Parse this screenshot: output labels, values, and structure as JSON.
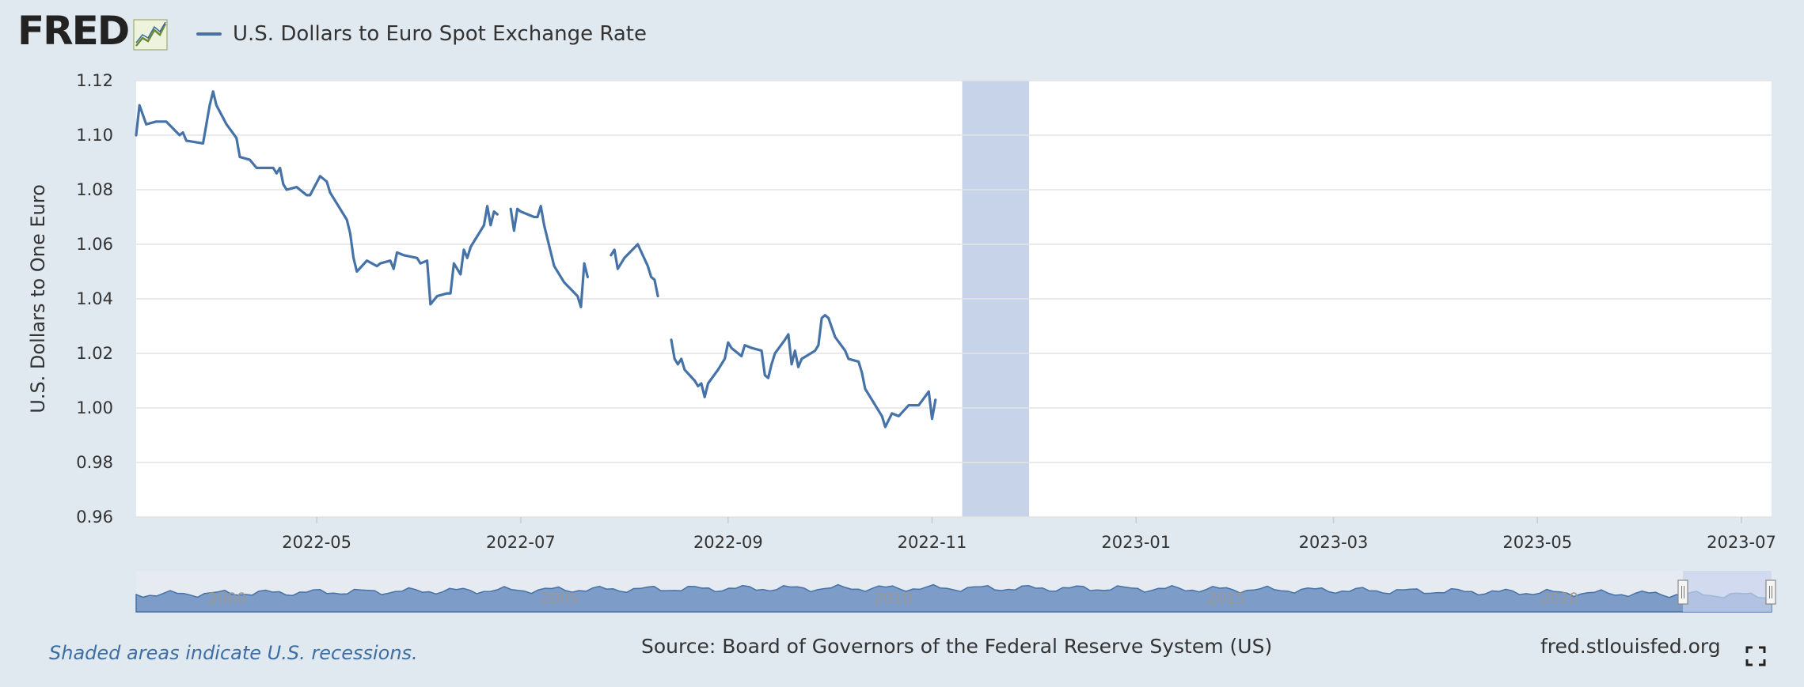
{
  "header": {
    "logo_text": "FRED",
    "legend_label": "U.S. Dollars to Euro Spot Exchange Rate",
    "series_color": "#4572a7"
  },
  "footer": {
    "note": "Shaded areas indicate U.S. recessions.",
    "source": "Source: Board of Governors of the Federal Reserve System (US)",
    "site": "fred.stlouisfed.org"
  },
  "chart_data": {
    "type": "line",
    "ylabel": "U.S. Dollars to One Euro",
    "ylim": [
      0.96,
      1.12
    ],
    "y_ticks": [
      "1.12",
      "1.10",
      "1.08",
      "1.06",
      "1.04",
      "1.02",
      "1.00",
      "0.98",
      "0.96"
    ],
    "xlim": [
      "2022-03-08",
      "2023-07-10"
    ],
    "x_ticks": [
      "2022-05",
      "2022-07",
      "2022-09",
      "2022-11",
      "2023-01",
      "2023-03",
      "2023-05",
      "2023-07"
    ],
    "grid": true,
    "legend": "top-left",
    "recession_shading": {
      "start": "2022-11-10",
      "end": "2022-11-30",
      "color": "#c7d3e8"
    },
    "series": [
      {
        "name": "U.S. Dollars to Euro Spot Exchange Rate",
        "color": "#4572a7",
        "segments": [
          [
            [
              "2022-03-08",
              1.1
            ],
            [
              "2022-03-09",
              1.111
            ],
            [
              "2022-03-11",
              1.104
            ],
            [
              "2022-03-14",
              1.105
            ],
            [
              "2022-03-17",
              1.105
            ],
            [
              "2022-03-21",
              1.1
            ],
            [
              "2022-03-22",
              1.101
            ],
            [
              "2022-03-23",
              1.098
            ],
            [
              "2022-03-28",
              1.097
            ],
            [
              "2022-03-30",
              1.111
            ],
            [
              "2022-03-31",
              1.116
            ],
            [
              "2022-04-01",
              1.111
            ],
            [
              "2022-04-04",
              1.104
            ],
            [
              "2022-04-07",
              1.099
            ],
            [
              "2022-04-08",
              1.092
            ],
            [
              "2022-04-11",
              1.091
            ],
            [
              "2022-04-13",
              1.088
            ],
            [
              "2022-04-18",
              1.088
            ],
            [
              "2022-04-19",
              1.086
            ],
            [
              "2022-04-20",
              1.088
            ],
            [
              "2022-04-21",
              1.082
            ],
            [
              "2022-04-22",
              1.08
            ],
            [
              "2022-04-25",
              1.081
            ],
            [
              "2022-04-27",
              1.079
            ],
            [
              "2022-04-28",
              1.078
            ],
            [
              "2022-04-29",
              1.078
            ],
            [
              "2022-05-02",
              1.085
            ],
            [
              "2022-05-04",
              1.083
            ],
            [
              "2022-05-05",
              1.079
            ],
            [
              "2022-05-10",
              1.069
            ],
            [
              "2022-05-11",
              1.064
            ],
            [
              "2022-05-12",
              1.055
            ],
            [
              "2022-05-13",
              1.05
            ],
            [
              "2022-05-16",
              1.054
            ],
            [
              "2022-05-19",
              1.052
            ],
            [
              "2022-05-20",
              1.053
            ],
            [
              "2022-05-23",
              1.054
            ],
            [
              "2022-05-24",
              1.051
            ],
            [
              "2022-05-25",
              1.057
            ],
            [
              "2022-05-27",
              1.056
            ],
            [
              "2022-05-31",
              1.055
            ],
            [
              "2022-06-01",
              1.053
            ],
            [
              "2022-06-03",
              1.054
            ],
            [
              "2022-06-04",
              1.038
            ],
            [
              "2022-06-06",
              1.041
            ],
            [
              "2022-06-09",
              1.042
            ],
            [
              "2022-06-10",
              1.042
            ],
            [
              "2022-06-11",
              1.053
            ],
            [
              "2022-06-13",
              1.049
            ],
            [
              "2022-06-14",
              1.058
            ],
            [
              "2022-06-15",
              1.055
            ],
            [
              "2022-06-16",
              1.059
            ],
            [
              "2022-06-20",
              1.067
            ],
            [
              "2022-06-21",
              1.074
            ],
            [
              "2022-06-22",
              1.067
            ],
            [
              "2022-06-23",
              1.072
            ],
            [
              "2022-06-24",
              1.071
            ]
          ],
          [
            [
              "2022-06-28",
              1.073
            ],
            [
              "2022-06-29",
              1.065
            ],
            [
              "2022-06-30",
              1.073
            ],
            [
              "2022-07-01",
              1.072
            ],
            [
              "2022-07-05",
              1.07
            ],
            [
              "2022-07-06",
              1.07
            ],
            [
              "2022-07-07",
              1.074
            ],
            [
              "2022-07-08",
              1.067
            ],
            [
              "2022-07-11",
              1.052
            ],
            [
              "2022-07-14",
              1.046
            ],
            [
              "2022-07-18",
              1.041
            ],
            [
              "2022-07-19",
              1.037
            ],
            [
              "2022-07-20",
              1.053
            ],
            [
              "2022-07-21",
              1.048
            ]
          ],
          [
            [
              "2022-07-28",
              1.056
            ],
            [
              "2022-07-29",
              1.058
            ],
            [
              "2022-07-30",
              1.051
            ],
            [
              "2022-08-01",
              1.055
            ],
            [
              "2022-08-05",
              1.06
            ],
            [
              "2022-08-08",
              1.052
            ],
            [
              "2022-08-09",
              1.048
            ],
            [
              "2022-08-10",
              1.047
            ],
            [
              "2022-08-11",
              1.041
            ]
          ],
          [
            [
              "2022-08-15",
              1.025
            ],
            [
              "2022-08-16",
              1.018
            ],
            [
              "2022-08-17",
              1.016
            ],
            [
              "2022-08-18",
              1.018
            ],
            [
              "2022-08-19",
              1.014
            ],
            [
              "2022-08-22",
              1.01
            ],
            [
              "2022-08-23",
              1.008
            ],
            [
              "2022-08-24",
              1.009
            ],
            [
              "2022-08-25",
              1.004
            ],
            [
              "2022-08-26",
              1.009
            ],
            [
              "2022-08-29",
              1.014
            ],
            [
              "2022-08-31",
              1.018
            ],
            [
              "2022-09-01",
              1.024
            ],
            [
              "2022-09-02",
              1.022
            ],
            [
              "2022-09-05",
              1.019
            ],
            [
              "2022-09-06",
              1.023
            ],
            [
              "2022-09-08",
              1.022
            ],
            [
              "2022-09-11",
              1.021
            ],
            [
              "2022-09-12",
              1.012
            ],
            [
              "2022-09-13",
              1.011
            ],
            [
              "2022-09-14",
              1.016
            ],
            [
              "2022-09-15",
              1.02
            ],
            [
              "2022-09-18",
              1.025
            ],
            [
              "2022-09-19",
              1.027
            ],
            [
              "2022-09-20",
              1.016
            ],
            [
              "2022-09-21",
              1.021
            ],
            [
              "2022-09-22",
              1.015
            ],
            [
              "2022-09-23",
              1.018
            ],
            [
              "2022-09-27",
              1.021
            ],
            [
              "2022-09-28",
              1.023
            ],
            [
              "2022-09-29",
              1.033
            ],
            [
              "2022-09-30",
              1.034
            ],
            [
              "2022-10-01",
              1.033
            ],
            [
              "2022-10-03",
              1.026
            ],
            [
              "2022-10-06",
              1.021
            ],
            [
              "2022-10-07",
              1.018
            ],
            [
              "2022-10-10",
              1.017
            ],
            [
              "2022-10-11",
              1.013
            ],
            [
              "2022-10-12",
              1.007
            ],
            [
              "2022-10-14",
              1.003
            ],
            [
              "2022-10-17",
              0.997
            ],
            [
              "2022-10-18",
              0.993
            ],
            [
              "2022-10-20",
              0.998
            ],
            [
              "2022-10-22",
              0.997
            ],
            [
              "2022-10-25",
              1.001
            ],
            [
              "2022-10-27",
              1.001
            ],
            [
              "2022-10-28",
              1.001
            ],
            [
              "2022-10-31",
              1.006
            ],
            [
              "2022-11-01",
              0.996
            ],
            [
              "2022-11-02",
              1.003
            ]
          ]
        ]
      }
    ]
  },
  "navigator": {
    "labels": [
      "2000",
      "2005",
      "2010",
      "2015",
      "2020"
    ]
  }
}
